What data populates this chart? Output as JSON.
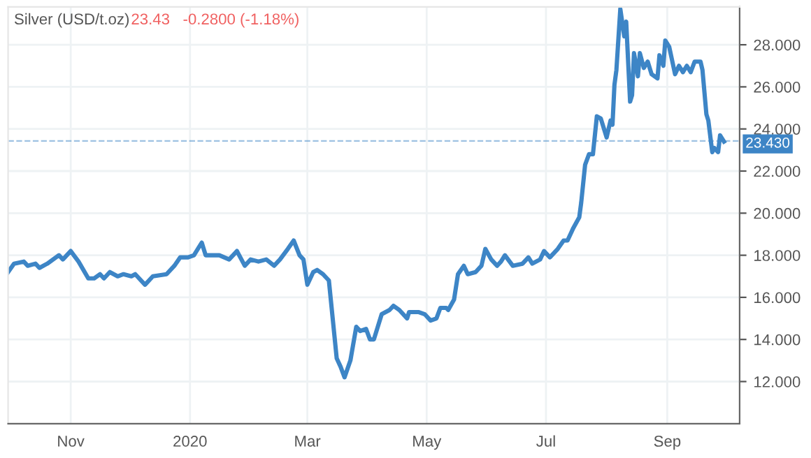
{
  "chart_data": {
    "type": "line",
    "title": "Silver (USD/t.oz)",
    "subtitle": "23.43   -0.2800 (-1.18%)",
    "x": [
      "2019-09-30",
      "2019-10-03",
      "2019-10-08",
      "2019-10-10",
      "2019-10-14",
      "2019-10-16",
      "2019-10-20",
      "2019-10-26",
      "2019-10-28",
      "2019-11-01",
      "2019-11-05",
      "2019-11-10",
      "2019-11-13",
      "2019-11-16",
      "2019-11-18",
      "2019-11-21",
      "2019-11-25",
      "2019-11-28",
      "2019-12-02",
      "2019-12-04",
      "2019-12-09",
      "2019-12-13",
      "2019-12-20",
      "2019-12-24",
      "2019-12-27",
      "2019-12-31",
      "2020-01-03",
      "2020-01-07",
      "2020-01-09",
      "2020-01-13",
      "2020-01-16",
      "2020-01-21",
      "2020-01-25",
      "2020-01-29",
      "2020-02-01",
      "2020-02-05",
      "2020-02-09",
      "2020-02-13",
      "2020-02-16",
      "2020-02-20",
      "2020-02-23",
      "2020-02-26",
      "2020-02-28",
      "2020-03-01",
      "2020-03-04",
      "2020-03-06",
      "2020-03-09",
      "2020-03-12",
      "2020-03-16",
      "2020-03-18",
      "2020-03-20",
      "2020-03-23",
      "2020-03-26",
      "2020-03-28",
      "2020-03-31",
      "2020-04-02",
      "2020-04-04",
      "2020-04-06",
      "2020-04-08",
      "2020-04-12",
      "2020-04-14",
      "2020-04-17",
      "2020-04-21",
      "2020-04-22",
      "2020-04-27",
      "2020-04-30",
      "2020-05-03",
      "2020-05-06",
      "2020-05-08",
      "2020-05-11",
      "2020-05-12",
      "2020-05-15",
      "2020-05-17",
      "2020-05-20",
      "2020-05-22",
      "2020-05-26",
      "2020-05-29",
      "2020-05-31",
      "2020-06-03",
      "2020-06-06",
      "2020-06-08",
      "2020-06-10",
      "2020-06-14",
      "2020-06-19",
      "2020-06-22",
      "2020-06-24",
      "2020-06-28",
      "2020-06-30",
      "2020-07-03",
      "2020-07-07",
      "2020-07-10",
      "2020-07-12",
      "2020-07-14",
      "2020-07-15",
      "2020-07-18",
      "2020-07-19",
      "2020-07-21",
      "2020-07-23",
      "2020-07-25",
      "2020-07-27",
      "2020-07-29",
      "2020-08-01",
      "2020-08-03",
      "2020-08-04",
      "2020-08-05",
      "2020-08-06",
      "2020-08-08",
      "2020-08-10",
      "2020-08-11",
      "2020-08-13",
      "2020-08-14",
      "2020-08-15",
      "2020-08-17",
      "2020-08-18",
      "2020-08-20",
      "2020-08-22",
      "2020-08-24",
      "2020-08-27",
      "2020-08-28",
      "2020-08-30",
      "2020-08-31",
      "2020-09-02",
      "2020-09-05",
      "2020-09-07",
      "2020-09-09",
      "2020-09-11",
      "2020-09-13",
      "2020-09-15",
      "2020-09-18",
      "2020-09-19",
      "2020-09-21",
      "2020-09-22",
      "2020-09-24",
      "2020-09-25",
      "2020-09-27",
      "2020-09-28",
      "2020-09-30"
    ],
    "series": [
      {
        "color": "#3d85c6",
        "values": [
          17.2,
          17.6,
          17.7,
          17.5,
          17.6,
          17.4,
          17.6,
          18.0,
          17.8,
          18.2,
          17.7,
          16.9,
          16.9,
          17.1,
          16.9,
          17.2,
          17.0,
          17.1,
          17.0,
          17.1,
          16.6,
          17.0,
          17.1,
          17.5,
          17.9,
          17.9,
          18.0,
          18.6,
          18.0,
          18.0,
          18.0,
          17.8,
          18.2,
          17.5,
          17.8,
          17.7,
          17.8,
          17.5,
          17.8,
          18.3,
          18.7,
          18.0,
          17.8,
          16.6,
          17.2,
          17.3,
          17.1,
          16.8,
          13.1,
          12.7,
          12.2,
          13.0,
          14.6,
          14.4,
          14.5,
          14.0,
          14.0,
          14.6,
          15.2,
          15.4,
          15.6,
          15.4,
          15.0,
          15.3,
          15.3,
          15.2,
          14.9,
          15.0,
          15.5,
          15.5,
          15.4,
          15.9,
          17.1,
          17.5,
          17.1,
          17.2,
          17.5,
          18.3,
          17.8,
          17.5,
          17.7,
          18.0,
          17.5,
          17.6,
          17.9,
          17.6,
          17.8,
          18.2,
          17.9,
          18.3,
          18.7,
          18.7,
          19.1,
          19.3,
          19.8,
          20.5,
          22.3,
          22.8,
          22.8,
          24.6,
          24.5,
          23.6,
          24.4,
          24.2,
          26.1,
          26.8,
          29.7,
          28.4,
          29.1,
          25.3,
          25.6,
          27.6,
          26.5,
          27.6,
          26.9,
          27.2,
          26.6,
          26.4,
          27.5,
          27.0,
          28.2,
          27.9,
          26.6,
          27.0,
          26.7,
          27.0,
          26.7,
          27.2,
          27.2,
          26.8,
          24.7,
          24.4,
          22.9,
          23.1,
          22.9,
          23.7,
          23.4
        ]
      }
    ],
    "xlim": [
      "2019-09-30",
      "2020-10-08"
    ],
    "xticks": [
      {
        "value": "2019-11-01",
        "label": "Nov"
      },
      {
        "value": "2020-01-01",
        "label": "2020"
      },
      {
        "value": "2020-03-01",
        "label": "Mar"
      },
      {
        "value": "2020-05-01",
        "label": "May"
      },
      {
        "value": "2020-07-01",
        "label": "Jul"
      },
      {
        "value": "2020-09-01",
        "label": "Sep"
      }
    ],
    "ylim": [
      10,
      29.8
    ],
    "yticks": [
      {
        "value": 12,
        "label": "12.000"
      },
      {
        "value": 14,
        "label": "14.000"
      },
      {
        "value": 16,
        "label": "16.000"
      },
      {
        "value": 18,
        "label": "18.000"
      },
      {
        "value": 20,
        "label": "20.000"
      },
      {
        "value": 22,
        "label": "22.000"
      },
      {
        "value": 24,
        "label": "24.000"
      },
      {
        "value": 26,
        "label": "26.000"
      },
      {
        "value": 28,
        "label": "28.000"
      }
    ],
    "ref_lines": [
      {
        "axis": "y",
        "value": 23.43,
        "label": "23.430",
        "color": "#3d85c6",
        "line_style": "dashed"
      }
    ],
    "grid": true,
    "line_style": "solid",
    "marker": "none"
  }
}
